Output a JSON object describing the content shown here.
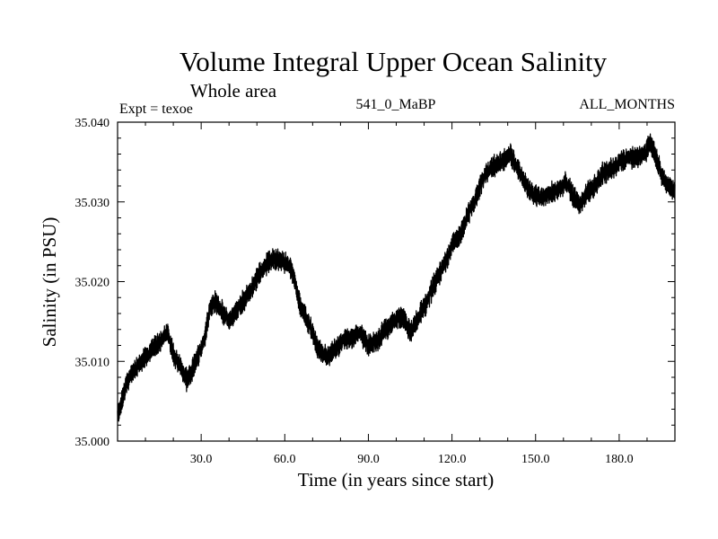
{
  "chart_data": {
    "type": "line",
    "title": "Volume Integral Upper Ocean Salinity",
    "subtitle": "Whole area",
    "annotations": {
      "left": "Expt = texoe",
      "center": "541_0_MaBP",
      "right": "ALL_MONTHS"
    },
    "xlabel": "Time (in years since start)",
    "ylabel": "Salinity (in PSU)",
    "xlim": [
      0,
      200
    ],
    "ylim": [
      35.0,
      35.04
    ],
    "xticks": [
      30,
      60,
      90,
      120,
      150,
      180
    ],
    "xtick_labels": [
      "30.0",
      "60.0",
      "90.0",
      "120.0",
      "150.0",
      "180.0"
    ],
    "yticks": [
      35.0,
      35.01,
      35.02,
      35.03,
      35.04
    ],
    "ytick_labels": [
      "35.000",
      "35.010",
      "35.020",
      "35.030",
      "35.040"
    ],
    "grid": false,
    "series": [
      {
        "name": "Salinity",
        "color": "#000000",
        "noise_amplitude": 0.0012,
        "trend_x": [
          0,
          1,
          3,
          6,
          10,
          15,
          18,
          20,
          23,
          25,
          28,
          31,
          33,
          35,
          38,
          40,
          43,
          45,
          48,
          50,
          53,
          56,
          59,
          62,
          64,
          66,
          69,
          72,
          75,
          78,
          81,
          84,
          87,
          90,
          93,
          96,
          99,
          101,
          103,
          105,
          108,
          111,
          114,
          117,
          120,
          123,
          126,
          129,
          132,
          135,
          138,
          141,
          143,
          146,
          149,
          152,
          155,
          158,
          161,
          164,
          166,
          168,
          171,
          174,
          177,
          180,
          183,
          186,
          189,
          191,
          193,
          195,
          197,
          200
        ],
        "trend_y": [
          35.003,
          35.0045,
          35.007,
          35.009,
          35.0105,
          35.0125,
          35.0135,
          35.011,
          35.009,
          35.0075,
          35.01,
          35.0125,
          35.0165,
          35.0175,
          35.016,
          35.015,
          35.0165,
          35.0175,
          35.019,
          35.0205,
          35.022,
          35.023,
          35.0225,
          35.022,
          35.0195,
          35.0165,
          35.0145,
          35.0115,
          35.0105,
          35.0115,
          35.0125,
          35.013,
          35.0135,
          35.012,
          35.0125,
          35.014,
          35.015,
          35.0155,
          35.0155,
          35.0135,
          35.0155,
          35.0175,
          35.02,
          35.022,
          35.0245,
          35.026,
          35.0285,
          35.031,
          35.0335,
          35.0345,
          35.035,
          35.036,
          35.0345,
          35.0325,
          35.031,
          35.0305,
          35.031,
          35.0315,
          35.0325,
          35.0305,
          35.0295,
          35.031,
          35.032,
          35.0335,
          35.034,
          35.035,
          35.0355,
          35.0355,
          35.036,
          35.0375,
          35.036,
          35.0335,
          35.032,
          35.0315
        ]
      }
    ]
  }
}
